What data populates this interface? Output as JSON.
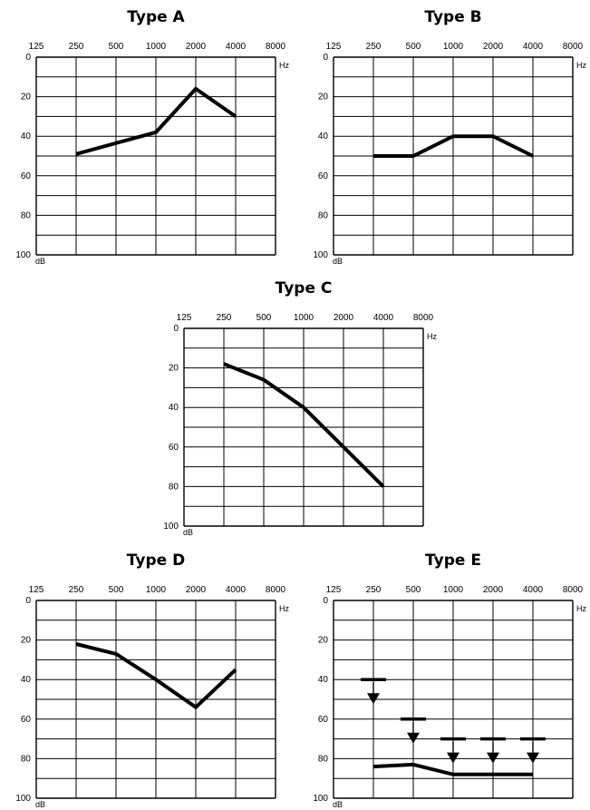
{
  "chart_data": [
    {
      "type": "line",
      "title": "Type A",
      "x_tick_labels": [
        "125",
        "250",
        "500",
        "1000",
        "2000",
        "4000",
        "8000"
      ],
      "y_tick_labels": [
        "0",
        "20",
        "40",
        "60",
        "80",
        "100"
      ],
      "x_unit": "Hz",
      "y_unit": "dB",
      "ylim": [
        0,
        100
      ],
      "y_inverted": true,
      "grid": true,
      "series": [
        {
          "x": [
            250,
            1000,
            2000,
            4000
          ],
          "y": [
            49,
            38,
            16,
            30
          ]
        }
      ]
    },
    {
      "type": "line",
      "title": "Type B",
      "x_tick_labels": [
        "125",
        "250",
        "500",
        "1000",
        "2000",
        "4000",
        "8000"
      ],
      "y_tick_labels": [
        "0",
        "20",
        "40",
        "60",
        "80",
        "100"
      ],
      "x_unit": "Hz",
      "y_unit": "dB",
      "ylim": [
        0,
        100
      ],
      "y_inverted": true,
      "grid": true,
      "series": [
        {
          "x": [
            250,
            500,
            1000,
            2000,
            4000
          ],
          "y": [
            50,
            50,
            40,
            40,
            50
          ]
        }
      ]
    },
    {
      "type": "line",
      "title": "Type C",
      "x_tick_labels": [
        "125",
        "250",
        "500",
        "1000",
        "2000",
        "4000",
        "8000"
      ],
      "y_tick_labels": [
        "0",
        "20",
        "40",
        "60",
        "80",
        "100"
      ],
      "x_unit": "Hz",
      "y_unit": "dB",
      "ylim": [
        0,
        100
      ],
      "y_inverted": true,
      "grid": true,
      "series": [
        {
          "x": [
            250,
            500,
            1000,
            2000,
            4000
          ],
          "y": [
            18,
            26,
            40,
            60,
            80
          ]
        }
      ]
    },
    {
      "type": "line",
      "title": "Type D",
      "x_tick_labels": [
        "125",
        "250",
        "500",
        "1000",
        "2000",
        "4000",
        "8000"
      ],
      "y_tick_labels": [
        "0",
        "20",
        "40",
        "60",
        "80",
        "100"
      ],
      "x_unit": "Hz",
      "y_unit": "dB",
      "ylim": [
        0,
        100
      ],
      "y_inverted": true,
      "grid": true,
      "series": [
        {
          "x": [
            250,
            500,
            1000,
            2000,
            4000
          ],
          "y": [
            22,
            27,
            40,
            54,
            35
          ]
        }
      ]
    },
    {
      "type": "line",
      "title": "Type E",
      "x_tick_labels": [
        "125",
        "250",
        "500",
        "1000",
        "2000",
        "4000",
        "8000"
      ],
      "y_tick_labels": [
        "0",
        "20",
        "40",
        "60",
        "80",
        "100"
      ],
      "x_unit": "Hz",
      "y_unit": "dB",
      "ylim": [
        0,
        100
      ],
      "y_inverted": true,
      "grid": true,
      "series": [
        {
          "x": [
            250,
            500,
            1000,
            2000,
            4000
          ],
          "y": [
            84,
            83,
            88,
            88,
            88
          ]
        }
      ],
      "no_response_markers": [
        {
          "x": 250,
          "y": 40
        },
        {
          "x": 500,
          "y": 60
        },
        {
          "x": 1000,
          "y": 70
        },
        {
          "x": 2000,
          "y": 70
        },
        {
          "x": 4000,
          "y": 70
        }
      ]
    }
  ]
}
